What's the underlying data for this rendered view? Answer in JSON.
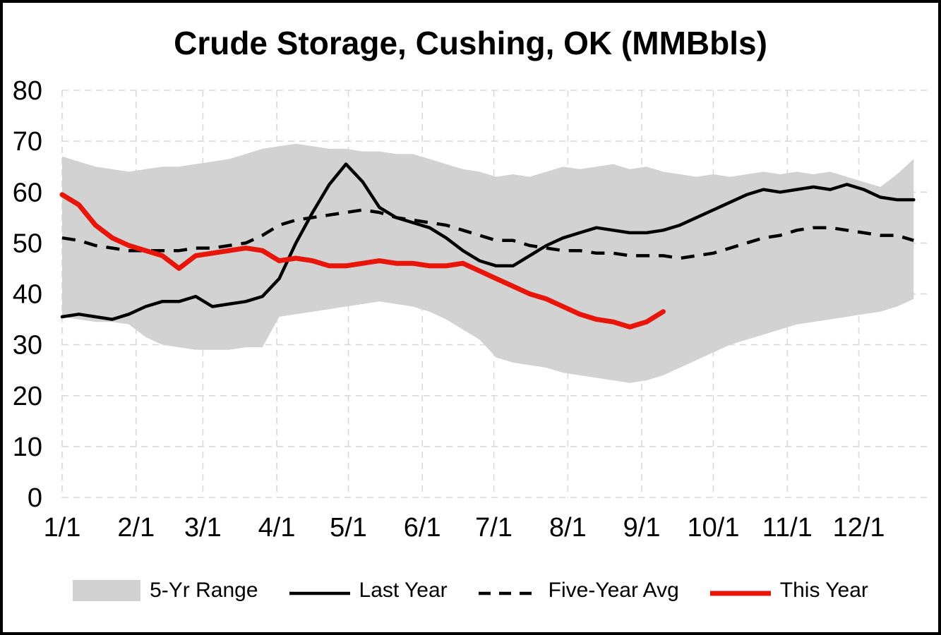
{
  "chart_data": {
    "type": "line",
    "title": "Crude Storage, Cushing, OK (MMBbls)",
    "ylabel": "",
    "xlabel": "",
    "ylim": [
      0,
      80
    ],
    "y_ticks": [
      0,
      10,
      20,
      30,
      40,
      50,
      60,
      70,
      80
    ],
    "x_tick_labels": [
      "1/1",
      "2/1",
      "3/1",
      "4/1",
      "5/1",
      "6/1",
      "7/1",
      "8/1",
      "9/1",
      "10/1",
      "11/1",
      "12/1"
    ],
    "x_tick_days": [
      1,
      32,
      60,
      91,
      121,
      152,
      182,
      213,
      244,
      274,
      305,
      335
    ],
    "grid": "dashed",
    "legend_position": "bottom",
    "colors": {
      "band": "#d2d2d2",
      "last_year": "#000000",
      "five_year_avg": "#000000",
      "this_year": "#e8150b",
      "grid": "#d9d9d9",
      "text": "#000000"
    },
    "sample_days": [
      1,
      8,
      15,
      22,
      29,
      36,
      43,
      50,
      57,
      64,
      71,
      78,
      85,
      92,
      99,
      106,
      113,
      120,
      127,
      134,
      141,
      148,
      155,
      162,
      169,
      176,
      183,
      190,
      197,
      204,
      211,
      218,
      225,
      232,
      239,
      246,
      253,
      260,
      267,
      274,
      281,
      288,
      295,
      302,
      309,
      316,
      323,
      330,
      337,
      344,
      351,
      358
    ],
    "band": {
      "name": "5-Yr Range",
      "upper": [
        67,
        66,
        65,
        64.5,
        64,
        64.5,
        65,
        65,
        65.5,
        66,
        66.5,
        67.5,
        68.5,
        69,
        69.5,
        69,
        68.5,
        68.5,
        68,
        68,
        67.5,
        67.5,
        66.5,
        65.5,
        64.5,
        64,
        63,
        63.5,
        63,
        64,
        65,
        64.5,
        65,
        65.5,
        64.5,
        65,
        64,
        63.5,
        63,
        63.5,
        63,
        63.5,
        64,
        63.5,
        64,
        63.5,
        64,
        63,
        62,
        61,
        63.5,
        66.5
      ],
      "lower": [
        35.5,
        35,
        34.5,
        34.5,
        34,
        31.5,
        30,
        29.5,
        29,
        29,
        29,
        29.5,
        29.5,
        35.5,
        36,
        36.5,
        37,
        37.5,
        38,
        38.5,
        38,
        37.5,
        36.5,
        35,
        33,
        31,
        27.5,
        26.5,
        26,
        25.5,
        24.5,
        24,
        23.5,
        23,
        22.5,
        23,
        24,
        25.5,
        27,
        28.5,
        30,
        31,
        32,
        33,
        34,
        34.5,
        35,
        35.5,
        36,
        36.5,
        37.5,
        39
      ]
    },
    "series": [
      {
        "id": "last-year",
        "name": "Last Year",
        "style": "solid",
        "color": "#000000",
        "width": 4.5,
        "values": [
          35.5,
          36,
          35.5,
          35,
          36,
          37.5,
          38.5,
          38.5,
          39.5,
          37.5,
          38,
          38.5,
          39.5,
          43,
          50,
          56,
          61.5,
          65.5,
          62,
          57,
          55,
          54,
          53,
          51,
          48.5,
          46.5,
          45.5,
          45.5,
          47.5,
          49.5,
          51,
          52,
          53,
          52.5,
          52,
          52,
          52.5,
          53.5,
          55,
          56.5,
          58,
          59.5,
          60.5,
          60,
          60.5,
          61,
          60.5,
          61.5,
          60.5,
          59,
          58.5,
          58.5
        ]
      },
      {
        "id": "five-year-avg",
        "name": "Five-Year Avg",
        "style": "dashed",
        "color": "#000000",
        "width": 4.5,
        "dash": "19 13",
        "values": [
          51,
          50.5,
          49.5,
          49,
          48.5,
          48.5,
          48.5,
          48.5,
          49,
          49,
          49.5,
          50,
          51.5,
          53.5,
          54.5,
          55,
          55.5,
          56,
          56.5,
          56,
          55,
          54.5,
          54,
          53.5,
          52.5,
          51.5,
          50.5,
          50.5,
          49.5,
          49,
          48.5,
          48.5,
          48,
          48,
          47.5,
          47.5,
          47.5,
          47,
          47.5,
          48,
          49,
          50,
          51,
          51.5,
          52.5,
          53,
          53,
          52.5,
          52,
          51.5,
          51.5,
          50.5
        ]
      },
      {
        "id": "this-year",
        "name": "This Year",
        "style": "solid",
        "color": "#e8150b",
        "width": 7,
        "days": [
          1,
          8,
          15,
          22,
          29,
          36,
          43,
          50,
          57,
          64,
          71,
          78,
          85,
          92,
          99,
          106,
          113,
          120,
          127,
          134,
          141,
          148,
          155,
          162,
          169,
          176,
          183,
          190,
          197,
          204,
          211,
          218,
          225,
          232,
          239,
          246,
          253
        ],
        "values": [
          59.5,
          57.5,
          53.5,
          51,
          49.5,
          48.5,
          47.5,
          45,
          47.5,
          48,
          48.5,
          49,
          48.5,
          46.5,
          47,
          46.5,
          45.5,
          45.5,
          46,
          46.5,
          46,
          46,
          45.5,
          45.5,
          46,
          44.5,
          43,
          41.5,
          40,
          39,
          37.5,
          36,
          35,
          34.5,
          33.5,
          34.5,
          36.5
        ]
      }
    ],
    "legend": [
      {
        "label": "5-Yr Range",
        "swatch": "band"
      },
      {
        "label": "Last Year",
        "swatch": "solid-line"
      },
      {
        "label": "Five-Year Avg",
        "swatch": "dashed-line"
      },
      {
        "label": "This Year",
        "swatch": "thick-red-line"
      }
    ]
  }
}
